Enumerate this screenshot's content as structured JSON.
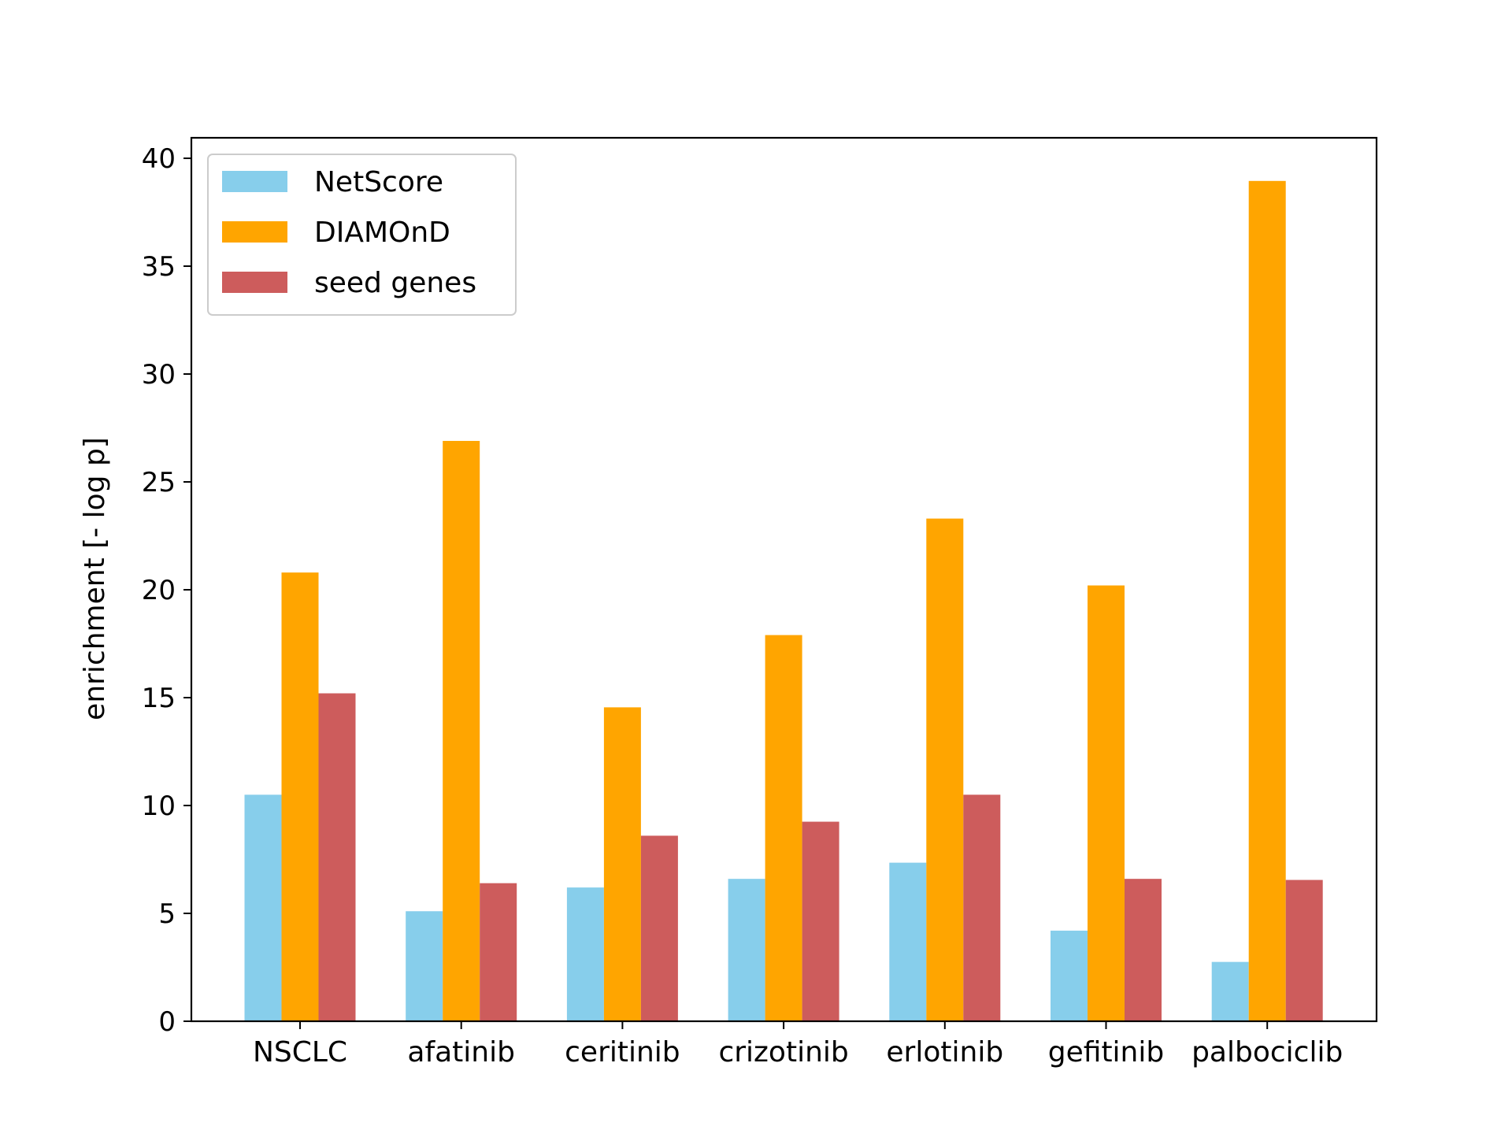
{
  "chart_data": {
    "type": "bar",
    "title": "",
    "xlabel": "",
    "ylabel": "enrichment [- log p]",
    "categories": [
      "NSCLC",
      "afatinib",
      "ceritinib",
      "crizotinib",
      "erlotinib",
      "gefitinib",
      "palbociclib"
    ],
    "series": [
      {
        "name": "NetScore",
        "color": "#87ceeb",
        "values": [
          10.5,
          5.1,
          6.2,
          6.6,
          7.35,
          4.2,
          2.75
        ]
      },
      {
        "name": "DIAMOnD",
        "color": "#ffa500",
        "values": [
          20.8,
          26.9,
          14.55,
          17.9,
          23.3,
          20.2,
          38.95
        ]
      },
      {
        "name": "seed genes",
        "color": "#cd5c5c",
        "values": [
          15.2,
          6.4,
          8.6,
          9.25,
          10.5,
          6.6,
          6.55
        ]
      }
    ],
    "ylim": [
      0,
      40.95
    ],
    "yticks": [
      0,
      5,
      10,
      15,
      20,
      25,
      30,
      35,
      40
    ],
    "grid": false,
    "legend_position": "top-left"
  }
}
